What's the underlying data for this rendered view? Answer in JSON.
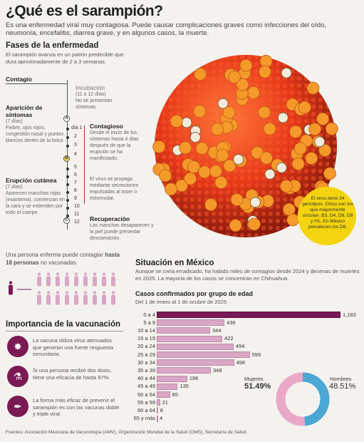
{
  "title": "¿Qué es el sarampión?",
  "intro": "Es una enfermedad viral muy contagiosa. Puede causar complicaciones graves como infecciones del oído, neumonía, encefalitis, diarrea grave, y en algunos casos, la muerte.",
  "phases": {
    "heading": "Fases de la enfermedad",
    "subtitle": "El sarampión avanza en un patrón predecible que dura aproximadamente de 2 a 3 semanas.",
    "contagio": "Contagio",
    "incubacion": {
      "title": "Incubación",
      "days": "(11 a 12 días)",
      "desc": "No se presentan síntomas"
    },
    "aparicion": {
      "title": "Aparición de síntomas",
      "days": "(7 días)",
      "desc": "Fiebre, ojos rojos, congestión nasal y puntos blancos dentro de la boca"
    },
    "contagioso": {
      "title": "Contagioso",
      "desc": "Desde el inicio de los síntomas hasta 4 días después de que la erupción se ha manifestado."
    },
    "propaga": "El virus se propaga mediante secreciones expulsadas al toser o estornudar.",
    "erupcion": {
      "title": "Erupción cutánea",
      "days": "(7 días)",
      "desc": "Aparecen manchas rojas (exantema), comienzan en la cara y se extienden por todo el cuerpo"
    },
    "recuperacion": {
      "title": "Recuperación",
      "desc": "Las manchas desaparecen y la piel puede presentar descamación."
    },
    "day_prefix": "día 1",
    "days": [
      "2",
      "3",
      "4",
      "5",
      "6",
      "7",
      "8",
      "9",
      "10",
      "11",
      "12"
    ],
    "markers": [
      "A",
      "B",
      "C"
    ]
  },
  "genotypes": "El virus tiene 24 genotipos. Cinco son los que mayormente circulan: B3, D4, D8, D9 y H1. En México prevalecen los D8.",
  "contagion_people": {
    "text_pre": "Una persona enferma puede contagiar",
    "text_bold_1": "hasta",
    "text_bold_2": "18 personas",
    "text_post": "no vacunadas."
  },
  "mexico": {
    "heading": "Situación en México",
    "desc": "Aunque se creía erradicado, ha habido miles de contagios desde 2024 y decenas de muertes en 2025. La mayoría de los casos se concentran en Chihuahua."
  },
  "chart_data": {
    "type": "bar",
    "title": "Casos confirmados por grupo de edad",
    "subtitle": "Del 1 de enero al 1 de ocubre de 2025",
    "categories": [
      "0 a 4",
      "5 a 9",
      "10 a 14",
      "15 a 19",
      "20 a 24",
      "25 a 29",
      "30 a 34",
      "35 a 39",
      "40 a 44",
      "45 a 49",
      "50 a 54",
      "55 a 59",
      "60 a 64",
      "65 y más"
    ],
    "values": [
      1183,
      436,
      344,
      422,
      494,
      599,
      498,
      348,
      196,
      135,
      85,
      21,
      8,
      4
    ],
    "labels": [
      "1,183",
      "436",
      "344",
      "422",
      "494",
      "599",
      "498",
      "348",
      "196",
      "135",
      "85",
      "21",
      "8",
      "4"
    ],
    "colors": {
      "highlight": "#7a1a55",
      "normal": "#d9a7c5"
    }
  },
  "gender_chart": {
    "type": "pie",
    "women_label": "Mujeres",
    "women_pct": "51.49%",
    "men_label": "Hombres",
    "men_pct": "48.51%",
    "women_value": 51.49,
    "men_value": 48.51,
    "women_color": "#e9a9c6",
    "men_color": "#4ba7d4"
  },
  "vaccination": {
    "heading": "Importancia de la vacunación",
    "items": [
      {
        "icon": "virus-icon",
        "text": "La vacuna utiliza virus atenuados que generan una fuerte respuesta inmunitaria."
      },
      {
        "icon": "vial-icon",
        "text": "Si una persona recibió dos dosis, tiene una eficacia de hasta 97%."
      },
      {
        "icon": "syringe-icon",
        "text": "La forma más eficaz de prevenir el sarampión es con las vacunas doble y triple viral."
      }
    ]
  },
  "sources": "Fuentes: Asociación Mexicana de Vacunología (AMV), Organización Mundial de la Salud (OMS), Secretaría de Salud."
}
